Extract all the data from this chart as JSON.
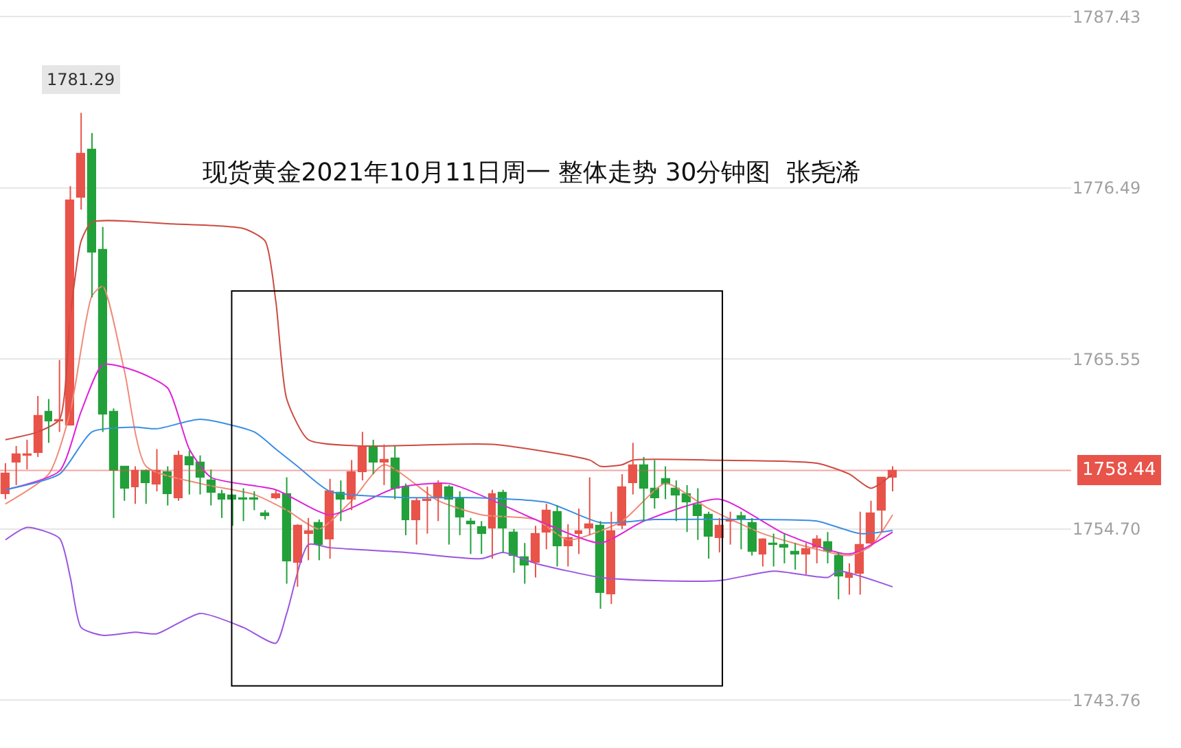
{
  "chart_data": {
    "type": "candlestick",
    "title": "现货黄金2021年10月11日周一 整体走势 30分钟图  张尧浠",
    "categories": [
      null,
      null,
      null,
      null,
      null,
      null,
      null,
      null,
      null,
      null,
      null,
      null,
      null,
      null,
      null,
      null,
      null,
      null,
      null,
      null,
      null,
      null,
      null,
      null,
      null,
      null,
      null,
      null,
      null,
      null,
      null,
      null,
      null,
      null,
      null,
      null,
      null,
      null,
      null,
      null,
      null,
      null,
      null,
      null,
      null,
      null,
      null,
      null,
      null,
      null,
      null,
      null,
      null,
      null,
      null,
      null,
      null,
      null,
      null,
      null,
      null,
      null,
      null,
      null,
      null,
      null,
      null,
      null,
      null,
      null,
      null,
      null,
      null,
      null,
      null,
      null,
      null,
      null,
      null,
      null,
      null,
      null,
      null,
      null,
      null,
      null,
      null,
      null,
      null,
      null,
      null,
      null,
      null,
      null,
      null,
      null,
      null,
      null,
      null
    ],
    "ohlc": [
      [
        1756.9,
        1758.9,
        1756.6,
        1758.2
      ],
      [
        1758.9,
        1760.0,
        1757.5,
        1759.5
      ],
      [
        1759.4,
        1760.4,
        1758.5,
        1759.5
      ],
      [
        1759.6,
        1763.2,
        1759.3,
        1761.9
      ],
      [
        1762.2,
        1763.0,
        1760.2,
        1761.6
      ],
      [
        1761.6,
        1765.5,
        1760.9,
        1761.7
      ],
      [
        1761.3,
        1776.6,
        1761.3,
        1775.7
      ],
      [
        1775.9,
        1781.29,
        1775.1,
        1778.7
      ],
      [
        1778.9,
        1780.0,
        1769.5,
        1772.4
      ],
      [
        1772.5,
        1774.0,
        1760.9,
        1762.0
      ],
      [
        1762.2,
        1762.4,
        1755.4,
        1758.4
      ],
      [
        1758.7,
        1758.7,
        1756.5,
        1757.3
      ],
      [
        1757.4,
        1758.7,
        1756.3,
        1758.4
      ],
      [
        1758.4,
        1758.5,
        1756.3,
        1757.6
      ],
      [
        1757.5,
        1759.8,
        1757.1,
        1758.4
      ],
      [
        1758.3,
        1758.7,
        1756.2,
        1756.9
      ],
      [
        1756.7,
        1759.7,
        1756.5,
        1759.4
      ],
      [
        1759.3,
        1759.7,
        1756.9,
        1758.8
      ],
      [
        1758.9,
        1759.4,
        1756.9,
        1758.0
      ],
      [
        1757.8,
        1758.5,
        1756.2,
        1757.0
      ],
      [
        1756.9,
        1757.2,
        1755.4,
        1756.6
      ],
      [
        1756.8,
        1756.9,
        1754.9,
        1756.6
      ],
      [
        1756.7,
        1757.3,
        1755.2,
        1756.6
      ],
      [
        1756.7,
        1757.1,
        1755.9,
        1756.6
      ],
      [
        1755.7,
        1755.9,
        1755.3,
        1755.5
      ],
      [
        1756.7,
        1757.2,
        1756.6,
        1756.9
      ],
      [
        1756.9,
        1758.0,
        1751.2,
        1752.6
      ],
      [
        1752.5,
        1755.0,
        1751.0,
        1754.9
      ],
      [
        1754.4,
        1755.4,
        1752.7,
        1754.6
      ],
      [
        1755.1,
        1755.3,
        1752.7,
        1753.7
      ],
      [
        1754.0,
        1757.9,
        1752.8,
        1757.1
      ],
      [
        1757.0,
        1757.8,
        1755.2,
        1756.6
      ],
      [
        1756.6,
        1759.1,
        1755.9,
        1758.3
      ],
      [
        1758.3,
        1760.9,
        1757.8,
        1759.9
      ],
      [
        1759.9,
        1760.4,
        1758.2,
        1758.9
      ],
      [
        1758.9,
        1760.1,
        1757.5,
        1759.1
      ],
      [
        1759.2,
        1760.0,
        1756.6,
        1757.3
      ],
      [
        1757.4,
        1757.6,
        1754.3,
        1755.3
      ],
      [
        1755.3,
        1756.7,
        1753.7,
        1756.5
      ],
      [
        1756.5,
        1757.4,
        1754.4,
        1756.6
      ],
      [
        1756.7,
        1757.8,
        1755.2,
        1757.5
      ],
      [
        1757.4,
        1757.5,
        1753.7,
        1756.6
      ],
      [
        1756.7,
        1757.1,
        1754.3,
        1755.4
      ],
      [
        1755.2,
        1755.4,
        1753.1,
        1755.0
      ],
      [
        1754.8,
        1755.2,
        1753.1,
        1754.4
      ],
      [
        1754.7,
        1757.2,
        1752.8,
        1756.9
      ],
      [
        1757.0,
        1757.2,
        1753.2,
        1754.7
      ],
      [
        1754.5,
        1754.7,
        1751.9,
        1753.0
      ],
      [
        1752.9,
        1753.8,
        1751.2,
        1752.4
      ],
      [
        1752.5,
        1754.9,
        1751.6,
        1754.4
      ],
      [
        1754.5,
        1756.3,
        1753.4,
        1755.9
      ],
      [
        1755.8,
        1756.2,
        1752.3,
        1753.6
      ],
      [
        1753.6,
        1755.0,
        1752.3,
        1754.1
      ],
      [
        1754.4,
        1756.0,
        1753.1,
        1754.6
      ],
      [
        1754.7,
        1758.0,
        1754.3,
        1755.0
      ],
      [
        1754.9,
        1755.2,
        1749.6,
        1750.6
      ],
      [
        1750.5,
        1755.8,
        1749.9,
        1754.6
      ],
      [
        1754.9,
        1758.2,
        1754.7,
        1757.4
      ],
      [
        1757.6,
        1760.2,
        1756.9,
        1758.8
      ],
      [
        1758.8,
        1759.3,
        1755.2,
        1757.3
      ],
      [
        1757.3,
        1759.1,
        1756.0,
        1756.7
      ],
      [
        1757.9,
        1758.7,
        1756.6,
        1757.5
      ],
      [
        1757.3,
        1757.8,
        1755.2,
        1756.8
      ],
      [
        1756.9,
        1757.5,
        1754.5,
        1756.4
      ],
      [
        1756.2,
        1757.3,
        1754.0,
        1755.5
      ],
      [
        1755.6,
        1755.8,
        1752.8,
        1754.2
      ],
      [
        1754.1,
        1755.4,
        1753.2,
        1754.9
      ],
      [
        1755.2,
        1755.8,
        1753.7,
        1755.3
      ],
      [
        1755.5,
        1755.8,
        1753.4,
        1755.3
      ],
      [
        1755.1,
        1755.4,
        1753.0,
        1753.2
      ],
      [
        1753.1,
        1754.1,
        1752.3,
        1754.0
      ],
      [
        1753.8,
        1754.4,
        1752.3,
        1753.7
      ],
      [
        1753.7,
        1754.4,
        1752.5,
        1753.5
      ],
      [
        1753.2,
        1753.8,
        1752.1,
        1753.1
      ],
      [
        1753.1,
        1753.8,
        1751.8,
        1753.4
      ],
      [
        1753.5,
        1754.3,
        1752.5,
        1754.0
      ],
      [
        1753.9,
        1754.5,
        1752.5,
        1753.2
      ],
      [
        1753.0,
        1753.2,
        1750.2,
        1751.7
      ],
      [
        1751.6,
        1752.5,
        1750.5,
        1751.8
      ],
      [
        1751.8,
        1755.8,
        1750.5,
        1753.7
      ],
      [
        1753.8,
        1756.5,
        1753.7,
        1755.7
      ],
      [
        1755.9,
        1758.0,
        1754.5,
        1758.0
      ],
      [
        1758.0,
        1758.7,
        1757.1,
        1758.44
      ],
      null,
      null,
      null,
      null,
      null,
      null,
      null,
      null,
      null,
      null,
      null,
      null,
      null,
      null,
      null,
      null
    ],
    "colors": [
      "#e8534a",
      "#e8534a",
      "#e8534a",
      "#e8534a",
      "#22a03a",
      "#e8534a",
      "#e8534a",
      "#e8534a",
      "#22a03a",
      "#22a03a",
      "#22a03a",
      "#22a03a",
      "#e8534a",
      "#22a03a",
      "#e8534a",
      "#22a03a",
      "#e8534a",
      "#22a03a",
      "#22a03a",
      "#22a03a",
      "#22a03a",
      "#22a03a",
      "#22a03a",
      "#22a03a",
      "#22a03a",
      "#e8534a",
      "#22a03a",
      "#e8534a",
      "#e8534a",
      "#22a03a",
      "#e8534a",
      "#22a03a",
      "#e8534a",
      "#e8534a",
      "#22a03a",
      "#e8534a",
      "#22a03a",
      "#22a03a",
      "#e8534a",
      "#e8534a",
      "#e8534a",
      "#22a03a",
      "#22a03a",
      "#22a03a",
      "#22a03a",
      "#e8534a",
      "#22a03a",
      "#22a03a",
      "#22a03a",
      "#e8534a",
      "#e8534a",
      "#22a03a",
      "#e8534a",
      "#e8534a",
      "#e8534a",
      "#22a03a",
      "#e8534a",
      "#e8534a",
      "#e8534a",
      "#22a03a",
      "#22a03a",
      "#22a03a",
      "#22a03a",
      "#22a03a",
      "#22a03a",
      "#22a03a",
      "#e8534a",
      "#e8534a",
      "#22a03a",
      "#22a03a",
      "#e8534a",
      "#22a03a",
      "#22a03a",
      "#22a03a",
      "#e8534a",
      "#e8534a",
      "#22a03a",
      "#22a03a",
      "#e8534a",
      "#e8534a",
      "#e8534a",
      "#e8534a",
      "#e8534a",
      null,
      null,
      null,
      null,
      null,
      null,
      null,
      null,
      null,
      null,
      null,
      null,
      null,
      null,
      null,
      null
    ],
    "series": [
      {
        "type": "line",
        "color": "#cc4a40",
        "values": [
          1760.4,
          null,
          null,
          1760.9,
          null,
          1761.7,
          1768.3,
          1773.1,
          1774.3,
          null,
          null,
          null,
          null,
          null,
          null,
          1774.2,
          null,
          null,
          null,
          null,
          null,
          null,
          1773.9,
          null,
          1773.1,
          1769.2,
          1763.0,
          null,
          1760.4,
          null,
          null,
          null,
          null,
          1760.0,
          null,
          null,
          null,
          null,
          null,
          null,
          null,
          null,
          null,
          null,
          null,
          1760.1,
          null,
          null,
          null,
          null,
          null,
          null,
          null,
          null,
          1759.1,
          1758.7,
          null,
          1758.8,
          1759.1,
          null,
          null,
          null,
          null,
          null,
          null,
          1759.1,
          null,
          null,
          null,
          null,
          null,
          null,
          null,
          null,
          null,
          1758.9,
          null,
          null,
          1758.2,
          null,
          1757.3,
          null,
          1758.2,
          null,
          null,
          null,
          null,
          null,
          null,
          null,
          null,
          null,
          null,
          null,
          null,
          null,
          null,
          null,
          null
        ]
      },
      {
        "type": "line",
        "color": "#f08a78",
        "values": [
          1756.3,
          null,
          null,
          null,
          1758.2,
          null,
          1762.2,
          null,
          1769.6,
          1770.2,
          null,
          1764.8,
          null,
          1758.7,
          null,
          null,
          null,
          null,
          1757.6,
          null,
          null,
          null,
          null,
          1756.9,
          null,
          null,
          1755.9,
          null,
          null,
          1754.7,
          null,
          null,
          1756.5,
          null,
          null,
          1758.8,
          null,
          null,
          null,
          null,
          1756.5,
          null,
          null,
          null,
          1755.6,
          null,
          null,
          null,
          null,
          1755.3,
          null,
          null,
          1754.0,
          null,
          null,
          null,
          null,
          1755.2,
          null,
          null,
          null,
          1757.6,
          null,
          null,
          null,
          1756.0,
          null,
          null,
          null,
          null,
          1754.4,
          null,
          null,
          null,
          null,
          1753.4,
          null,
          null,
          1753.0,
          null,
          1753.6,
          null,
          1755.6,
          null,
          null,
          null,
          null,
          null,
          null,
          null,
          null,
          null,
          null,
          null,
          null,
          null,
          null,
          null,
          null
        ]
      },
      {
        "type": "line",
        "color": "#e020d8",
        "values": [
          1757.2,
          null,
          null,
          null,
          null,
          1758.4,
          null,
          1762.2,
          null,
          1765.2,
          null,
          null,
          1764.8,
          null,
          null,
          1763.7,
          null,
          1759.8,
          null,
          1758.0,
          null,
          null,
          null,
          null,
          null,
          1757.2,
          null,
          null,
          null,
          null,
          1755.6,
          null,
          null,
          null,
          null,
          null,
          1757.3,
          null,
          null,
          null,
          null,
          1757.6,
          null,
          null,
          null,
          null,
          null,
          null,
          null,
          1755.3,
          null,
          null,
          null,
          null,
          null,
          1753.8,
          null,
          null,
          null,
          1755.2,
          null,
          null,
          null,
          null,
          null,
          null,
          1756.6,
          null,
          null,
          null,
          null,
          null,
          1754.4,
          null,
          null,
          null,
          null,
          null,
          1753.1,
          null,
          null,
          null,
          1754.5,
          null,
          null,
          null,
          null,
          null,
          null,
          null,
          null,
          null,
          null,
          null,
          null,
          null,
          null,
          null,
          null
        ]
      },
      {
        "type": "line",
        "color": "#3a8ee6",
        "values": [
          1757.2,
          null,
          null,
          null,
          null,
          1758.2,
          null,
          null,
          1760.9,
          null,
          null,
          null,
          1761.2,
          null,
          1761.1,
          null,
          null,
          null,
          1761.7,
          null,
          null,
          null,
          null,
          1760.9,
          null,
          1759.8,
          null,
          1758.7,
          null,
          null,
          1757.1,
          null,
          null,
          null,
          null,
          null,
          null,
          1756.7,
          null,
          null,
          null,
          null,
          null,
          1756.7,
          null,
          null,
          null,
          null,
          null,
          null,
          1756.4,
          null,
          null,
          null,
          null,
          1755.1,
          null,
          null,
          null,
          null,
          1755.3,
          null,
          null,
          null,
          null,
          null,
          null,
          null,
          null,
          null,
          1755.3,
          null,
          null,
          null,
          null,
          1755.2,
          null,
          null,
          null,
          1754.4,
          null,
          null,
          1754.6,
          null,
          null,
          null,
          null,
          null,
          null,
          null,
          null,
          null,
          null,
          null,
          null,
          null,
          null,
          null,
          null
        ]
      },
      {
        "type": "line",
        "color": "#9a55e0",
        "values": [
          1754.0,
          null,
          1754.8,
          null,
          null,
          1754.1,
          1751.6,
          1748.4,
          null,
          1747.9,
          null,
          null,
          1748.1,
          null,
          1748.0,
          null,
          null,
          null,
          1749.3,
          null,
          null,
          null,
          1748.4,
          null,
          null,
          1747.4,
          1749.3,
          null,
          1753.7,
          null,
          1753.5,
          null,
          null,
          null,
          null,
          null,
          null,
          1753.2,
          null,
          null,
          null,
          null,
          null,
          null,
          1752.8,
          null,
          1753.2,
          null,
          null,
          1752.5,
          null,
          null,
          null,
          null,
          null,
          1751.6,
          null,
          null,
          null,
          null,
          1751.4,
          null,
          null,
          null,
          null,
          null,
          1751.4,
          null,
          null,
          null,
          null,
          1752.0,
          null,
          null,
          null,
          null,
          1751.6,
          1752.0,
          null,
          null,
          null,
          null,
          1751.0,
          null,
          null,
          null,
          null,
          null,
          null,
          null,
          null,
          null,
          null,
          null,
          null,
          null,
          null,
          null,
          null
        ]
      }
    ],
    "ylim": [
      1740.7,
      1788.5
    ],
    "yticks": [
      1787.43,
      1776.49,
      1765.55,
      {
        "value": 1754.7,
        "label": "1754.70"
      },
      1743.76
    ],
    "grid": "y",
    "ref_lines": [
      {
        "axis": "y",
        "value": 1758.44,
        "label": "1758.44",
        "color": "#e8534a"
      }
    ],
    "annotations": [
      "1781.29"
    ]
  }
}
